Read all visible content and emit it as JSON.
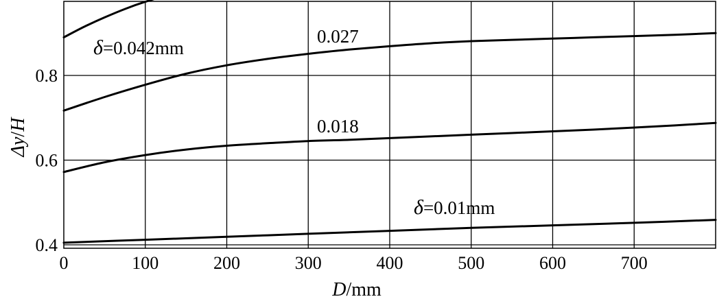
{
  "chart_data": {
    "type": "line",
    "title": "",
    "xlabel": {
      "var": "D",
      "unit": "/mm"
    },
    "ylabel": {
      "var": "Δy",
      "sep": "/",
      "var2": "H"
    },
    "xlim": [
      0,
      800
    ],
    "ylim": [
      0.4,
      1.0
    ],
    "grid": true,
    "x_ticks": [
      0,
      100,
      200,
      300,
      400,
      500,
      600,
      700
    ],
    "x_tick_labels": [
      "0",
      "100",
      "200",
      "300",
      "400",
      "500",
      "600",
      "700"
    ],
    "y_ticks": [
      0.4,
      0.6,
      0.8
    ],
    "y_tick_labels": [
      "0.4",
      "0.6",
      "0.8"
    ],
    "series": [
      {
        "name": "δ=0.042mm",
        "label_parts": {
          "sym": "δ",
          "rest": "=0.042mm"
        },
        "x": [
          0,
          25,
          50,
          75,
          100,
          125,
          150,
          180
        ],
        "y": [
          0.89,
          0.915,
          0.937,
          0.957,
          0.974,
          0.988,
          0.997,
          1.0
        ]
      },
      {
        "name": "0.027",
        "label_parts": {
          "sym": "",
          "rest": "0.027"
        },
        "x": [
          0,
          50,
          100,
          150,
          200,
          250,
          300,
          350,
          400,
          450,
          500,
          550,
          600,
          650,
          700,
          750,
          800
        ],
        "y": [
          0.717,
          0.749,
          0.778,
          0.804,
          0.824,
          0.839,
          0.851,
          0.861,
          0.869,
          0.876,
          0.881,
          0.884,
          0.887,
          0.89,
          0.893,
          0.896,
          0.9
        ]
      },
      {
        "name": "0.018",
        "label_parts": {
          "sym": "",
          "rest": "0.018"
        },
        "x": [
          0,
          50,
          100,
          150,
          200,
          250,
          300,
          350,
          400,
          450,
          500,
          550,
          600,
          650,
          700,
          750,
          800
        ],
        "y": [
          0.572,
          0.595,
          0.612,
          0.625,
          0.634,
          0.64,
          0.645,
          0.648,
          0.652,
          0.656,
          0.66,
          0.664,
          0.668,
          0.672,
          0.677,
          0.682,
          0.688
        ]
      },
      {
        "name": "δ=0.01mm",
        "label_parts": {
          "sym": "δ",
          "rest": "=0.01mm"
        },
        "x": [
          0,
          100,
          200,
          300,
          400,
          500,
          600,
          700,
          800
        ],
        "y": [
          0.405,
          0.412,
          0.419,
          0.426,
          0.433,
          0.44,
          0.446,
          0.452,
          0.459
        ]
      }
    ]
  }
}
